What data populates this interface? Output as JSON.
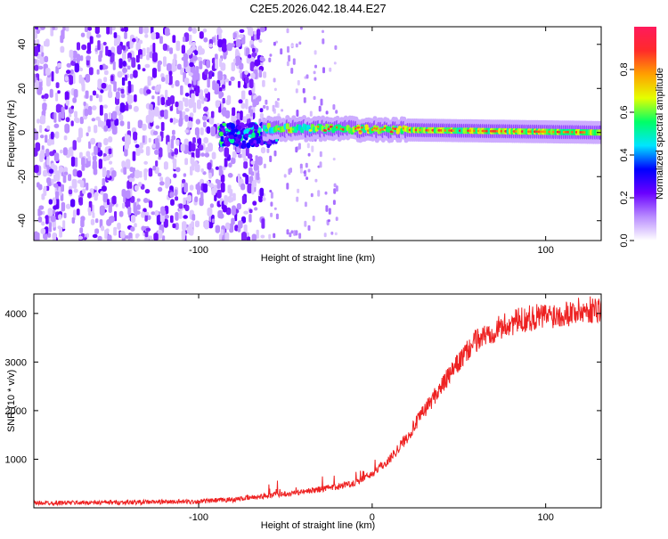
{
  "figure": {
    "title": "C2E5.2026.042.18.44.E27"
  },
  "chart_data": [
    {
      "type": "heatmap",
      "id": "spectrogram",
      "xlabel": "Height of straight line (km)",
      "ylabel": "Frequency (Hz)",
      "xlim": [
        -195,
        132
      ],
      "ylim": [
        -49,
        48
      ],
      "xticks": [
        -100,
        0,
        100
      ],
      "xtick_labels": [
        "-100",
        "",
        "100"
      ],
      "yticks": [
        -40,
        -20,
        0,
        20,
        40
      ],
      "ytick_labels": [
        "-40",
        "-20",
        "0",
        "20",
        "40"
      ],
      "colorbar": {
        "label": "Normalized spectral amplitude",
        "range": [
          0.0,
          1.0
        ],
        "ticks": [
          0.0,
          0.2,
          0.4,
          0.6,
          0.8
        ],
        "tick_labels": [
          "0.0",
          "0.2",
          "0.4",
          "0.6",
          "0.8"
        ],
        "colors": [
          "#ffffff",
          "#b98cff",
          "#6a00ff",
          "#0000ff",
          "#00e5ff",
          "#00ff66",
          "#e5ff00",
          "#ffa000",
          "#ff2a2a",
          "#ff1a5c"
        ]
      },
      "regions": [
        {
          "name": "noise",
          "x_range": [
            -195,
            -62
          ],
          "freq_range": [
            -49,
            48
          ],
          "amplitude": 0.18
        },
        {
          "name": "sparse-noise",
          "x_range": [
            -62,
            -20
          ],
          "freq_range": [
            -49,
            48
          ],
          "amplitude": 0.05
        },
        {
          "name": "onset",
          "x_range": [
            -88,
            -55
          ],
          "freq_range": [
            -6,
            4
          ],
          "amplitude": 0.45
        },
        {
          "name": "signal-line",
          "x_range": [
            -62,
            132
          ],
          "freq_center": [
            2,
            0
          ],
          "amplitude": 0.9
        }
      ]
    },
    {
      "type": "line",
      "id": "snr",
      "xlabel": "Height of straight line (km)",
      "ylabel": "SNR (10 * v/v)",
      "xlim": [
        -195,
        132
      ],
      "ylim": [
        0,
        4400
      ],
      "xticks": [
        -100,
        0,
        100
      ],
      "xtick_labels": [
        "-100",
        "0",
        "100"
      ],
      "yticks": [
        1000,
        2000,
        3000,
        4000
      ],
      "ytick_labels": [
        "1000",
        "2000",
        "3000",
        "4000"
      ],
      "color": "#ee2222",
      "series": [
        {
          "name": "SNR",
          "x": [
            -195,
            -150,
            -100,
            -80,
            -60,
            -40,
            -20,
            -10,
            0,
            10,
            20,
            30,
            40,
            50,
            60,
            70,
            80,
            90,
            100,
            110,
            120,
            132
          ],
          "values": [
            100,
            110,
            130,
            170,
            250,
            330,
            430,
            520,
            700,
            1000,
            1450,
            2000,
            2500,
            3000,
            3450,
            3650,
            3800,
            3900,
            3950,
            4000,
            4050,
            4100
          ]
        }
      ]
    }
  ]
}
